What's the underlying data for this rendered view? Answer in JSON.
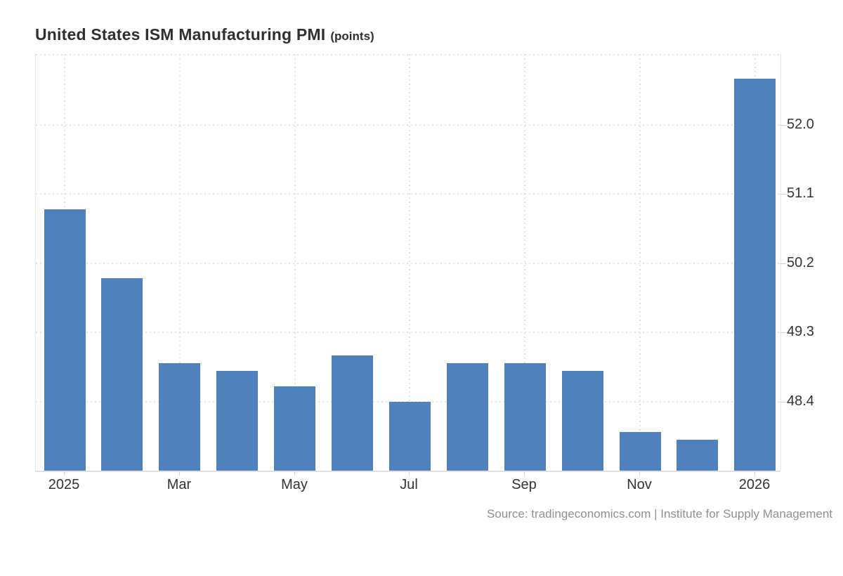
{
  "title": "United States ISM Manufacturing PMI",
  "title_units": "(points)",
  "source_credit": "Source: tradingeconomics.com | Institute for Supply Management",
  "colors": {
    "bar": "#4f82bc",
    "grid": "#e3e3e3",
    "axis_line": "#e0e0e0",
    "axis_text": "#333333",
    "title_text": "#2f2f2f",
    "source_text": "#8f8f8f",
    "background": "#ffffff"
  },
  "chart_data": {
    "type": "bar",
    "title": "United States ISM Manufacturing PMI (points)",
    "x": [
      "Jan 2025",
      "Feb 2025",
      "Mar 2025",
      "Apr 2025",
      "May 2025",
      "Jun 2025",
      "Jul 2025",
      "Aug 2025",
      "Sep 2025",
      "Oct 2025",
      "Nov 2025",
      "Dec 2025",
      "Jan 2026"
    ],
    "values": [
      50.9,
      50.0,
      48.9,
      48.8,
      48.6,
      49.0,
      48.4,
      48.9,
      48.9,
      48.8,
      48.0,
      47.9,
      52.6
    ],
    "x_tick_labels": [
      {
        "index": 0,
        "label": "2025"
      },
      {
        "index": 2,
        "label": "Mar"
      },
      {
        "index": 4,
        "label": "May"
      },
      {
        "index": 6,
        "label": "Jul"
      },
      {
        "index": 8,
        "label": "Sep"
      },
      {
        "index": 10,
        "label": "Nov"
      },
      {
        "index": 12,
        "label": "2026"
      }
    ],
    "y_ticks": [
      48.4,
      49.3,
      50.2,
      51.1,
      52.0
    ],
    "y_tick_side": "right",
    "ylim": [
      47.5,
      52.92
    ],
    "xlabel": "",
    "ylabel": "points",
    "grid": "dotted",
    "legend": "none"
  }
}
